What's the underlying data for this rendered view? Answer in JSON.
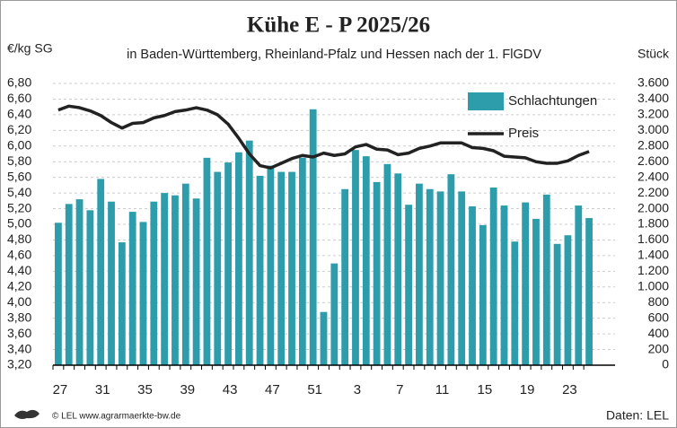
{
  "chart_data": {
    "type": "bar",
    "title": "Kühe E - P 2025/26",
    "subtitle": "in Baden-Württemberg, Rheinland-Pfalz und Hessen nach der 1. FlGDV",
    "y_label": "€/kg SG",
    "y2_label": "Stück",
    "source_left": "© LEL www.agrarmaerkte-bw.de",
    "source_right": "Daten: LEL",
    "grid": true,
    "legend": "upper right",
    "categories": [
      "27",
      null,
      null,
      null,
      "31",
      null,
      null,
      null,
      "35",
      null,
      null,
      null,
      "39",
      null,
      null,
      null,
      "43",
      null,
      null,
      null,
      "47",
      null,
      null,
      null,
      "51",
      null,
      null,
      null,
      "3",
      null,
      null,
      null,
      "7",
      null,
      null,
      null,
      "11",
      null,
      null,
      null,
      "15",
      null,
      null,
      null,
      "19",
      null,
      null,
      null,
      "23",
      null,
      null
    ],
    "series": [
      {
        "name": "Schlachtungen",
        "type": "bar",
        "axis": "y2",
        "color": "#2e9dab",
        "values": [
          1820,
          2060,
          2120,
          1980,
          2380,
          2090,
          1570,
          1960,
          1830,
          2090,
          2200,
          2170,
          2320,
          2130,
          2650,
          2470,
          2590,
          2720,
          2870,
          2420,
          2550,
          2470,
          2470,
          2650,
          3270,
          680,
          1300,
          2250,
          2750,
          2670,
          2340,
          2570,
          2450,
          2050,
          2320,
          2250,
          2220,
          2440,
          2220,
          2030,
          1790,
          2270,
          2040,
          1580,
          2080,
          1870,
          2180,
          1550,
          1660,
          2040,
          1880
        ]
      },
      {
        "name": "Preis",
        "type": "line",
        "axis": "y",
        "color": "#222222",
        "values": [
          6.46,
          6.51,
          6.49,
          6.45,
          6.39,
          6.3,
          6.23,
          6.29,
          6.3,
          6.36,
          6.39,
          6.44,
          6.46,
          6.49,
          6.46,
          6.4,
          6.28,
          6.1,
          5.9,
          5.75,
          5.72,
          5.78,
          5.84,
          5.88,
          5.86,
          5.91,
          5.88,
          5.9,
          5.99,
          6.02,
          5.96,
          5.95,
          5.89,
          5.91,
          5.97,
          6.0,
          6.04,
          6.04,
          6.04,
          5.98,
          5.97,
          5.94,
          5.87,
          5.86,
          5.85,
          5.8,
          5.78,
          5.78,
          5.81,
          5.88,
          5.93
        ]
      }
    ],
    "ylim": [
      3.2,
      6.8
    ],
    "yticks": [
      {
        "value": 3.2,
        "label": "3,20"
      },
      {
        "value": 3.4,
        "label": "3,40"
      },
      {
        "value": 3.6,
        "label": "3,60"
      },
      {
        "value": 3.8,
        "label": "3,80"
      },
      {
        "value": 4.0,
        "label": "4,00"
      },
      {
        "value": 4.2,
        "label": "4,20"
      },
      {
        "value": 4.4,
        "label": "4,40"
      },
      {
        "value": 4.6,
        "label": "4,60"
      },
      {
        "value": 4.8,
        "label": "4,80"
      },
      {
        "value": 5.0,
        "label": "5,00"
      },
      {
        "value": 5.2,
        "label": "5,20"
      },
      {
        "value": 5.4,
        "label": "5,40"
      },
      {
        "value": 5.6,
        "label": "5,60"
      },
      {
        "value": 5.8,
        "label": "5,80"
      },
      {
        "value": 6.0,
        "label": "6,00"
      },
      {
        "value": 6.2,
        "label": "6,20"
      },
      {
        "value": 6.4,
        "label": "6,40"
      },
      {
        "value": 6.6,
        "label": "6,60"
      },
      {
        "value": 6.8,
        "label": "6,80"
      }
    ],
    "y2lim": [
      0,
      3600
    ],
    "y2ticks": [
      0,
      200,
      400,
      600,
      800,
      {
        "value": 1000,
        "label": "1.000"
      },
      {
        "value": 1200,
        "label": "1.200"
      },
      {
        "value": 1400,
        "label": "1.400"
      },
      {
        "value": 1600,
        "label": "1.600"
      },
      {
        "value": 1800,
        "label": "1.800"
      },
      {
        "value": 2000,
        "label": "2.000"
      },
      {
        "value": 2200,
        "label": "2.200"
      },
      {
        "value": 2400,
        "label": "2.400"
      },
      {
        "value": 2600,
        "label": "2.600"
      },
      {
        "value": 2800,
        "label": "2.800"
      },
      {
        "value": 3000,
        "label": "3.000"
      },
      {
        "value": 3200,
        "label": "3.200"
      },
      {
        "value": 3400,
        "label": "3.400"
      },
      {
        "value": 3600,
        "label": "3.600"
      }
    ]
  }
}
